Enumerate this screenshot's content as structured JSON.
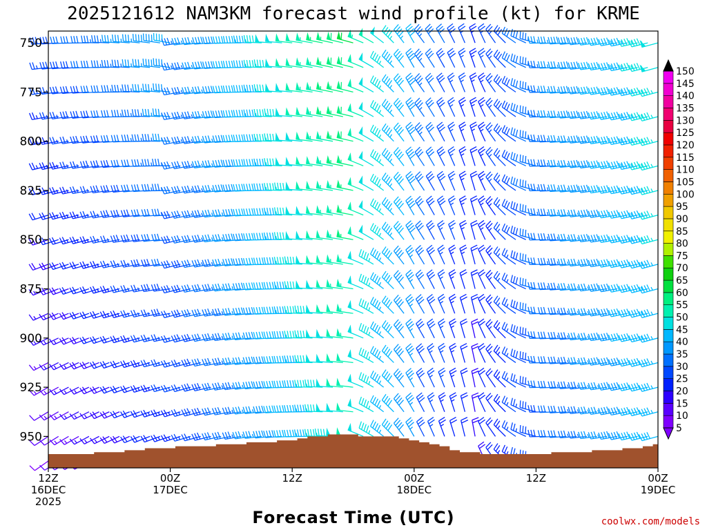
{
  "chart_data": {
    "type": "wind-barb-time-height",
    "title": "2025121612 NAM3KM forecast wind profile (kt) for KRME",
    "xlabel": "Forecast Time (UTC)",
    "ylabel": "",
    "units": "kt",
    "y_ticks": [
      "750",
      "775",
      "800",
      "825",
      "850",
      "875",
      "900",
      "925",
      "950"
    ],
    "y_range_hPa": [
      744,
      966
    ],
    "x_range_hours": [
      0,
      60
    ],
    "x_ticks": [
      {
        "hour": 0,
        "line1": "12Z",
        "line2": "16DEC",
        "line3": "2025"
      },
      {
        "hour": 12,
        "line1": "00Z",
        "line2": "17DEC",
        "line3": ""
      },
      {
        "hour": 24,
        "line1": "12Z",
        "line2": "",
        "line3": ""
      },
      {
        "hour": 36,
        "line1": "00Z",
        "line2": "18DEC",
        "line3": ""
      },
      {
        "hour": 48,
        "line1": "12Z",
        "line2": "",
        "line3": ""
      },
      {
        "hour": 60,
        "line1": "00Z",
        "line2": "19DEC",
        "line3": ""
      }
    ],
    "levels_hPa": [
      750,
      762.5,
      775,
      787.5,
      800,
      812.5,
      825,
      837.5,
      850,
      862.5,
      875,
      887.5,
      900,
      912.5,
      925,
      937.5,
      950,
      962.5
    ],
    "hours": [
      0,
      1,
      2,
      3,
      4,
      5,
      6,
      7,
      8,
      9,
      10,
      11,
      12,
      13,
      14,
      15,
      16,
      17,
      18,
      19,
      20,
      21,
      22,
      23,
      24,
      25,
      26,
      27,
      28,
      29,
      30,
      31,
      32,
      33,
      34,
      35,
      36,
      37,
      38,
      39,
      40,
      41,
      42,
      43,
      44,
      45,
      46,
      47,
      48,
      49,
      50,
      51,
      52,
      53,
      54,
      55,
      56,
      57,
      58,
      59,
      60
    ],
    "terrain_surface_hPa": [
      959,
      959,
      959,
      959,
      959,
      958,
      958,
      958,
      957,
      957,
      956,
      956,
      956,
      955,
      955,
      955,
      955,
      954,
      954,
      954,
      953,
      953,
      953,
      952,
      952,
      951,
      950,
      950,
      949,
      949,
      949,
      950,
      950,
      950,
      950,
      951,
      952,
      953,
      954,
      955,
      957,
      958,
      958,
      959,
      959,
      959,
      959,
      959,
      959,
      959,
      958,
      958,
      958,
      958,
      957,
      957,
      957,
      956,
      956,
      955,
      954
    ],
    "colorbar": {
      "levels": [
        5,
        10,
        15,
        20,
        25,
        30,
        35,
        40,
        45,
        50,
        55,
        60,
        65,
        70,
        75,
        80,
        85,
        90,
        95,
        100,
        105,
        110,
        115,
        120,
        125,
        130,
        135,
        140,
        145,
        150
      ],
      "colors": [
        "#7f00ff",
        "#5a00ff",
        "#2c00ff",
        "#0020ff",
        "#0048ff",
        "#0070ff",
        "#0098ff",
        "#00b8ff",
        "#00e0e0",
        "#00f0b0",
        "#00f080",
        "#00e040",
        "#10d010",
        "#40e000",
        "#b0f000",
        "#f0f000",
        "#f0e000",
        "#f0c800",
        "#f0a000",
        "#f08000",
        "#f06000",
        "#f04000",
        "#f02000",
        "#f00000",
        "#e80040",
        "#f00070",
        "#f000a0",
        "#f000d0",
        "#f000f0",
        "#e000e0"
      ],
      "labels": [
        "5",
        "10",
        "15",
        "20",
        "25",
        "30",
        "35",
        "40",
        "45",
        "50",
        "55",
        "60",
        "65",
        "70",
        "75",
        "80",
        "85",
        "90",
        "95",
        "100",
        "105",
        "110",
        "115",
        "120",
        "125",
        "130",
        "135",
        "140",
        "145",
        "150"
      ]
    },
    "wind_description": "Wind barbs at each level every hour; west-southwest 10-30 kt early, strengthening to 45-65 kt from the west by 17/18Z, veering to northwest/north 15-35 kt after 18DEC 00Z, then backing to west-southwest 30-50 kt by 19DEC."
  },
  "credit": "coolwx.com/models"
}
